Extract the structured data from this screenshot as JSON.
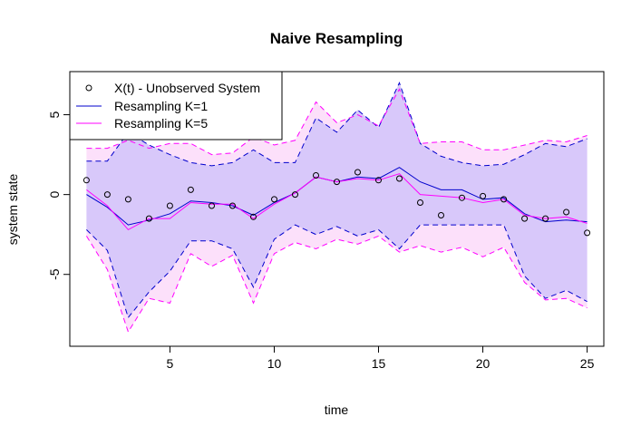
{
  "chart_data": {
    "type": "line",
    "title": "Naive Resampling",
    "xlabel": "time",
    "ylabel": "system state",
    "xlim": [
      0.2,
      25.8
    ],
    "ylim": [
      -9.5,
      7.7
    ],
    "x_ticks": [
      5,
      10,
      15,
      20,
      25
    ],
    "y_ticks": [
      -5,
      0,
      5
    ],
    "grid": false,
    "legend_position": "top-left",
    "x": [
      1,
      2,
      3,
      4,
      5,
      6,
      7,
      8,
      9,
      10,
      11,
      12,
      13,
      14,
      15,
      16,
      17,
      18,
      19,
      20,
      21,
      22,
      23,
      24,
      25
    ],
    "observations": {
      "name": "X(t) - Unobserved System",
      "values": [
        0.9,
        0.0,
        -0.3,
        -1.5,
        -0.7,
        0.3,
        -0.7,
        -0.7,
        -1.4,
        -0.3,
        0.0,
        1.2,
        0.8,
        1.4,
        0.9,
        1.0,
        -0.5,
        -1.3,
        -0.2,
        -0.1,
        -0.3,
        -1.5,
        -1.5,
        -1.1,
        -2.4
      ]
    },
    "series": [
      {
        "name": "Resampling K=1",
        "color": "#0000CD",
        "band_color": "#D8C8FA",
        "mean": [
          0.0,
          -0.8,
          -1.9,
          -1.6,
          -1.2,
          -0.4,
          -0.5,
          -0.7,
          -1.3,
          -0.5,
          0.1,
          1.1,
          0.8,
          1.1,
          1.0,
          1.7,
          0.8,
          0.3,
          0.3,
          -0.3,
          -0.2,
          -1.2,
          -1.7,
          -1.6,
          -1.7
        ],
        "upper": [
          2.1,
          2.1,
          3.9,
          3.1,
          2.5,
          2.0,
          1.8,
          2.0,
          2.8,
          2.0,
          2.0,
          4.8,
          3.9,
          5.3,
          4.2,
          7.0,
          3.2,
          2.4,
          2.0,
          1.8,
          1.9,
          2.5,
          3.2,
          3.0,
          3.5
        ],
        "lower": [
          -2.2,
          -3.5,
          -7.7,
          -6.1,
          -4.8,
          -2.9,
          -2.9,
          -3.4,
          -5.8,
          -2.8,
          -1.9,
          -2.5,
          -2.0,
          -2.6,
          -2.2,
          -3.4,
          -1.9,
          -1.9,
          -1.9,
          -1.9,
          -1.9,
          -5.1,
          -6.5,
          -6.0,
          -6.7
        ]
      },
      {
        "name": "Resampling K=5",
        "color": "#FF00FF",
        "band_color": "#FCE0FA",
        "mean": [
          0.3,
          -0.7,
          -2.2,
          -1.5,
          -1.5,
          -0.5,
          -0.6,
          -0.6,
          -1.5,
          -0.6,
          0.1,
          1.1,
          0.8,
          1.0,
          0.9,
          1.3,
          0.0,
          -0.1,
          -0.2,
          -0.5,
          -0.3,
          -1.3,
          -1.5,
          -1.4,
          -1.8
        ],
        "upper": [
          2.9,
          2.9,
          3.4,
          2.9,
          3.2,
          3.2,
          2.5,
          2.6,
          3.6,
          3.1,
          3.4,
          5.8,
          4.5,
          5.0,
          4.3,
          6.6,
          3.2,
          3.3,
          3.3,
          2.8,
          2.8,
          3.1,
          3.4,
          3.3,
          3.7
        ],
        "lower": [
          -2.6,
          -4.7,
          -8.6,
          -6.5,
          -6.8,
          -3.7,
          -4.5,
          -3.8,
          -6.8,
          -3.7,
          -3.0,
          -3.4,
          -2.8,
          -3.1,
          -2.6,
          -3.6,
          -3.2,
          -3.6,
          -3.3,
          -3.9,
          -3.3,
          -5.5,
          -6.6,
          -6.5,
          -7.1
        ]
      }
    ]
  }
}
